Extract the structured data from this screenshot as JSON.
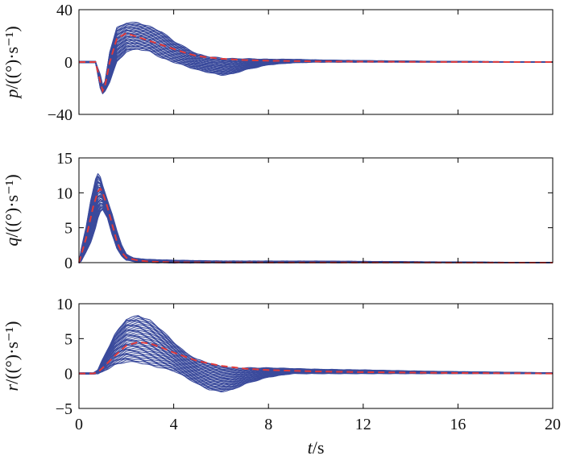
{
  "colors": {
    "band": "#3a4a9c",
    "mean": "#e23a3a",
    "axis": "#000000"
  },
  "chart_data": [
    {
      "type": "line",
      "panel": "p",
      "ylabel_var": "p",
      "ylabel_unit": "/((°)·s⁻¹)",
      "xlim": [
        0,
        20
      ],
      "ylim": [
        -40,
        40
      ],
      "yticks": [
        "40",
        "0",
        "−40"
      ],
      "ytick_values": [
        40,
        0,
        -40
      ],
      "series": [
        {
          "role": "bundle",
          "x": [
            0,
            0.7,
            0.9,
            1.0,
            1.1,
            1.3,
            1.6,
            2.0,
            2.5,
            3.0,
            3.5,
            4.0,
            4.5,
            5.0,
            5.5,
            6.0,
            6.5,
            7.0,
            8.0,
            9.0,
            10.0,
            12.0,
            15.0,
            20.0
          ],
          "upper": [
            0,
            0,
            -10,
            -18,
            -15,
            8,
            26,
            30,
            30,
            27,
            23,
            16,
            11,
            6,
            4,
            3,
            2.5,
            2.5,
            2,
            2,
            1.5,
            1,
            0.5,
            0
          ],
          "lower": [
            0,
            0,
            -20,
            -24,
            -22,
            -15,
            0,
            8,
            10,
            8,
            3,
            0,
            -3,
            -6,
            -8,
            -10,
            -9,
            -6,
            -2,
            -0.5,
            0,
            0,
            0,
            0
          ]
        },
        {
          "role": "mean",
          "x": [
            0,
            0.7,
            0.9,
            1.0,
            1.1,
            1.3,
            1.6,
            2.0,
            2.5,
            3.0,
            3.5,
            4.0,
            4.5,
            5.0,
            6.0,
            7.0,
            8.0,
            10.0,
            12.0,
            15.0,
            20.0
          ],
          "y": [
            0,
            0,
            -15,
            -22,
            -18,
            0,
            18,
            22,
            19,
            16,
            13,
            10,
            7,
            4.5,
            2.5,
            1.5,
            1,
            0.5,
            0.3,
            0.1,
            0
          ]
        }
      ]
    },
    {
      "type": "line",
      "panel": "q",
      "ylabel_var": "q",
      "ylabel_unit": "/((°)·s⁻¹)",
      "xlim": [
        0,
        20
      ],
      "ylim": [
        0,
        15
      ],
      "yticks": [
        "15",
        "10",
        "5",
        "0"
      ],
      "ytick_values": [
        15,
        10,
        5,
        0
      ],
      "series": [
        {
          "role": "bundle",
          "x": [
            0,
            0.1,
            0.3,
            0.5,
            0.7,
            0.8,
            0.9,
            1.0,
            1.2,
            1.4,
            1.6,
            1.8,
            2.0,
            2.3,
            2.6,
            3.0,
            4.0,
            6.0,
            10.0,
            15.0,
            20.0
          ],
          "upper": [
            0,
            2,
            5,
            9,
            12,
            12.7,
            12.2,
            11,
            9,
            7,
            4.5,
            2.5,
            1.2,
            0.6,
            0.5,
            0.4,
            0.3,
            0.2,
            0.2,
            0.1,
            0
          ],
          "lower": [
            0,
            0.2,
            1.5,
            3,
            5,
            6.3,
            7.2,
            7.6,
            6.5,
            4,
            2,
            1,
            0.4,
            0.2,
            0.1,
            0.05,
            0,
            0,
            0,
            0,
            0
          ]
        },
        {
          "role": "mean",
          "x": [
            0,
            0.3,
            0.6,
            0.8,
            0.9,
            1.0,
            1.2,
            1.4,
            1.6,
            1.8,
            2.0,
            2.5,
            3.0,
            4.0,
            8.0,
            20.0
          ],
          "y": [
            0,
            3.5,
            8,
            10.2,
            10.6,
            10,
            8,
            5.5,
            3,
            1.5,
            0.7,
            0.3,
            0.15,
            0.05,
            0.02,
            0
          ]
        }
      ]
    },
    {
      "type": "line",
      "panel": "r",
      "ylabel_var": "r",
      "ylabel_unit": "/((°)·s⁻¹)",
      "xlabel_var": "t",
      "xlabel_unit": "/s",
      "xlim": [
        0,
        20
      ],
      "ylim": [
        -5,
        10
      ],
      "xticks": [
        "0",
        "4",
        "8",
        "12",
        "16",
        "20"
      ],
      "xtick_values": [
        0,
        4,
        8,
        12,
        16,
        20
      ],
      "yticks": [
        "10",
        "5",
        "0",
        "−5"
      ],
      "ytick_values": [
        10,
        5,
        0,
        -5
      ],
      "series": [
        {
          "role": "bundle",
          "x": [
            0,
            0.6,
            0.8,
            1.0,
            1.5,
            2.0,
            2.5,
            3.0,
            3.5,
            4.0,
            4.5,
            5.0,
            5.5,
            6.0,
            6.5,
            7.0,
            8.0,
            9.0,
            10.0,
            12.0,
            15.0,
            20.0
          ],
          "upper": [
            0,
            0,
            0.5,
            2,
            5.5,
            7.8,
            8.3,
            7.6,
            6.2,
            4.5,
            3,
            2,
            1.5,
            1,
            0.8,
            0.8,
            0.8,
            0.7,
            0.6,
            0.5,
            0.3,
            0.1
          ],
          "lower": [
            0,
            0,
            0,
            0.3,
            1.2,
            1.7,
            1.6,
            1.2,
            0.8,
            0.4,
            -0.5,
            -1.5,
            -2.3,
            -2.6,
            -2.3,
            -1.5,
            -0.5,
            0,
            0,
            0,
            0,
            0
          ]
        },
        {
          "role": "mean",
          "x": [
            0,
            0.6,
            0.8,
            1.0,
            1.5,
            2.0,
            2.5,
            3.0,
            3.5,
            4.0,
            5.0,
            6.0,
            7.0,
            8.0,
            10.0,
            12.0,
            15.0,
            20.0
          ],
          "y": [
            0,
            0,
            0.2,
            0.8,
            2.5,
            4,
            4.5,
            4.3,
            3.7,
            3,
            1.8,
            1.1,
            0.7,
            0.5,
            0.3,
            0.2,
            0.1,
            0
          ]
        }
      ]
    }
  ]
}
